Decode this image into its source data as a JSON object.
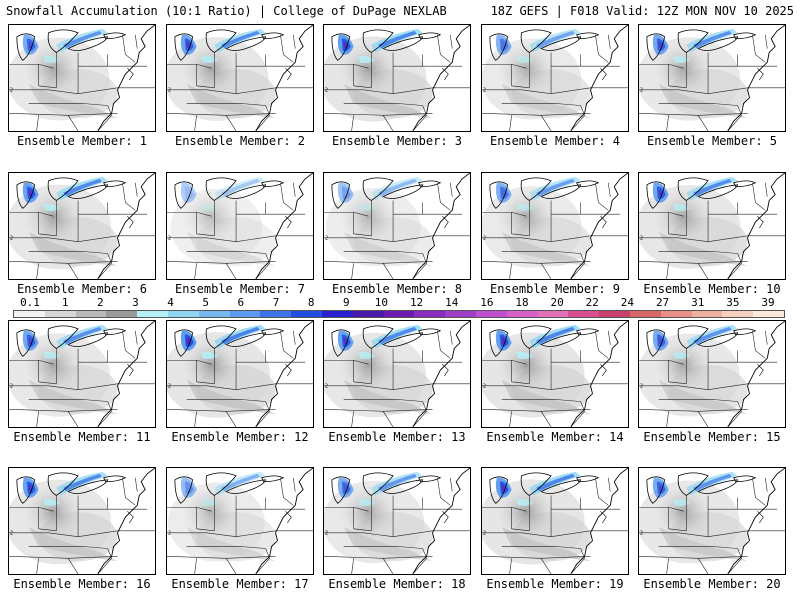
{
  "header": {
    "left": "Snowfall Accumulation (10:1 Ratio) | College of DuPage NEXLAB",
    "right": "18Z GEFS | F018 Valid: 12Z MON NOV 10 2025"
  },
  "colorbar": {
    "ticks": [
      "0.1",
      "1",
      "2",
      "3",
      "4",
      "5",
      "6",
      "7",
      "8",
      "9",
      "10",
      "12",
      "14",
      "16",
      "18",
      "20",
      "22",
      "24",
      "27",
      "31",
      "35",
      "39"
    ],
    "colors": [
      "#f2f2f2",
      "#d6d6d6",
      "#b8b8b8",
      "#9a9a9a",
      "#b4f0f5",
      "#8fd7f2",
      "#75b9f0",
      "#5a9af0",
      "#3d73e8",
      "#1f4fe0",
      "#2a20d0",
      "#4a1aa8",
      "#6a1ab0",
      "#8a2cc0",
      "#a040c8",
      "#c050d0",
      "#d860c8",
      "#e070b8",
      "#d85090",
      "#c84070",
      "#d86868",
      "#e89088",
      "#f0b0a0",
      "#f6d0c0",
      "#faeadc"
    ]
  },
  "members": [
    {
      "label": "Ensemble Member: 1",
      "intensity": 0.7
    },
    {
      "label": "Ensemble Member: 2",
      "intensity": 0.8
    },
    {
      "label": "Ensemble Member: 3",
      "intensity": 0.9
    },
    {
      "label": "Ensemble Member: 4",
      "intensity": 0.55
    },
    {
      "label": "Ensemble Member: 5",
      "intensity": 0.75
    },
    {
      "label": "Ensemble Member: 6",
      "intensity": 0.85
    },
    {
      "label": "Ensemble Member: 7",
      "intensity": 0.15
    },
    {
      "label": "Ensemble Member: 8",
      "intensity": 0.3
    },
    {
      "label": "Ensemble Member: 9",
      "intensity": 0.6
    },
    {
      "label": "Ensemble Member: 10",
      "intensity": 0.8
    },
    {
      "label": "Ensemble Member: 11",
      "intensity": 0.75
    },
    {
      "label": "Ensemble Member: 12",
      "intensity": 0.95
    },
    {
      "label": "Ensemble Member: 13",
      "intensity": 0.85
    },
    {
      "label": "Ensemble Member: 14",
      "intensity": 0.9
    },
    {
      "label": "Ensemble Member: 15",
      "intensity": 0.7
    },
    {
      "label": "Ensemble Member: 16",
      "intensity": 0.85
    },
    {
      "label": "Ensemble Member: 17",
      "intensity": 0.4
    },
    {
      "label": "Ensemble Member: 18",
      "intensity": 0.65
    },
    {
      "label": "Ensemble Member: 19",
      "intensity": 0.9
    },
    {
      "label": "Ensemble Member: 20",
      "intensity": 0.7
    }
  ]
}
